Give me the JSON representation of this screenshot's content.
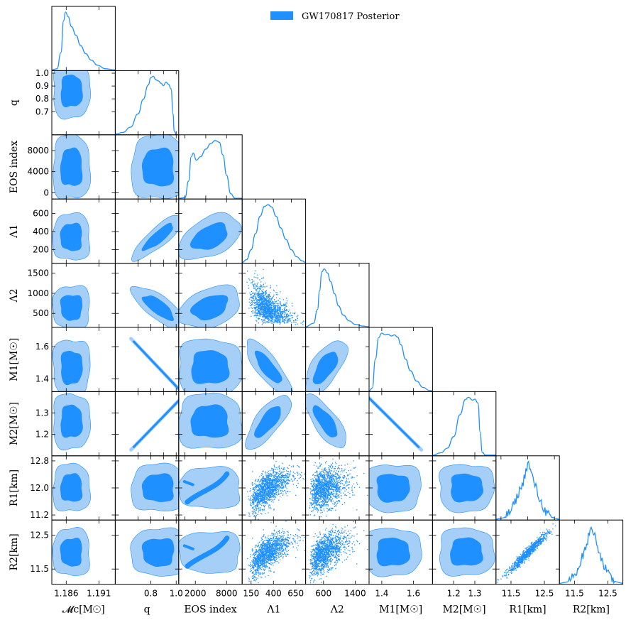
{
  "chart_data": {
    "type": "corner",
    "title": "",
    "colors": {
      "main": "#1e90ff",
      "light": "#a6cff8",
      "frame": "#000000"
    },
    "legend": {
      "label": "GW170817 Posterior",
      "placement": "top-center"
    },
    "parameters": [
      {
        "key": "mc",
        "label": "𝓜c[M☉]",
        "axis_label": "𝓜c[M☉]",
        "range": [
          1.1838,
          1.1935
        ],
        "mean": 1.1868,
        "sd": 0.0012,
        "skew": 1.2,
        "ticks": [
          1.186,
          1.191
        ],
        "tick_labels": [
          "1.186",
          "1.191"
        ]
      },
      {
        "key": "q",
        "label": "q",
        "range": [
          0.52,
          1.02
        ],
        "mean": 0.86,
        "sd": 0.09,
        "skew": -0.6,
        "ticks": [
          0.7,
          0.8,
          0.9,
          1.0
        ],
        "tick_labels": [
          "0.7",
          "0.8",
          "0.9",
          "1.0"
        ],
        "bottom_ticks": [
          0.8,
          1.0
        ],
        "bottom_tick_labels": [
          "0.8",
          "1.0"
        ]
      },
      {
        "key": "eos",
        "label": "EOS index",
        "range": [
          -1200,
          11000
        ],
        "mean": 4800,
        "sd": 2600,
        "skew": 0,
        "ticks": [
          0,
          4000,
          8000
        ],
        "tick_labels": [
          "0",
          "4000",
          "8000"
        ],
        "bottom_ticks": [
          2000,
          8000
        ],
        "bottom_tick_labels": [
          "2000",
          "8000"
        ]
      },
      {
        "key": "l1",
        "label": "Λ1",
        "range": [
          50,
          760
        ],
        "mean": 340,
        "sd": 110,
        "skew": 0.8,
        "ticks": [
          200,
          400,
          600
        ],
        "tick_labels": [
          "200",
          "400",
          "600"
        ],
        "bottom_ticks": [
          150,
          400,
          650
        ],
        "bottom_tick_labels": [
          "150",
          "400",
          "650"
        ]
      },
      {
        "key": "l2",
        "label": "Λ2",
        "range": [
          150,
          1750
        ],
        "mean": 650,
        "sd": 230,
        "skew": 1.0,
        "ticks": [
          500,
          1000,
          1500
        ],
        "tick_labels": [
          "500",
          "1000",
          "1500"
        ],
        "bottom_ticks": [
          600,
          1400
        ],
        "bottom_tick_labels": [
          "600",
          "1400"
        ]
      },
      {
        "key": "m1",
        "label": "M1[M☉]",
        "range": [
          1.32,
          1.72
        ],
        "mean": 1.47,
        "sd": 0.075,
        "skew": 0.6,
        "ticks": [
          1.4,
          1.6
        ],
        "tick_labels": [
          "1.4",
          "1.6"
        ],
        "left_ticks": [
          1.4,
          1.6
        ],
        "left_tick_labels": [
          "1.4",
          "1.6"
        ]
      },
      {
        "key": "m2",
        "label": "M2[M☉]",
        "range": [
          1.1,
          1.4
        ],
        "mean": 1.26,
        "sd": 0.055,
        "skew": -0.6,
        "ticks": [
          1.2,
          1.3
        ],
        "tick_labels": [
          "1.2",
          "1.3"
        ]
      },
      {
        "key": "r1",
        "label": "R1[km]",
        "range": [
          11.05,
          12.95
        ],
        "mean": 12.0,
        "sd": 0.3,
        "skew": 0,
        "ticks": [
          11.2,
          12.0,
          12.8
        ],
        "tick_labels": [
          "11.2",
          "12.0",
          "12.8"
        ],
        "bottom_ticks": [
          11.5,
          12.5
        ],
        "bottom_tick_labels": [
          "11.5",
          "12.5"
        ]
      },
      {
        "key": "r2",
        "label": "R2[km]",
        "range": [
          11.05,
          12.95
        ],
        "mean": 12.0,
        "sd": 0.3,
        "skew": 0,
        "ticks": [
          11.5,
          12.5
        ],
        "tick_labels": [
          "11.5",
          "12.5"
        ]
      }
    ],
    "diagonal": {
      "mc": [
        [
          1.1838,
          0
        ],
        [
          1.1846,
          0.02
        ],
        [
          1.1852,
          0.3
        ],
        [
          1.1856,
          0.85
        ],
        [
          1.1859,
          1.0
        ],
        [
          1.1863,
          0.92
        ],
        [
          1.1868,
          0.75
        ],
        [
          1.1875,
          0.6
        ],
        [
          1.1882,
          0.42
        ],
        [
          1.189,
          0.28
        ],
        [
          1.1898,
          0.17
        ],
        [
          1.1908,
          0.08
        ],
        [
          1.192,
          0.02
        ],
        [
          1.1935,
          0
        ]
      ],
      "q": [
        [
          0.52,
          0
        ],
        [
          0.58,
          0.03
        ],
        [
          0.64,
          0.12
        ],
        [
          0.7,
          0.35
        ],
        [
          0.74,
          0.6
        ],
        [
          0.78,
          0.85
        ],
        [
          0.8,
          0.98
        ],
        [
          0.82,
          1.0
        ],
        [
          0.84,
          0.94
        ],
        [
          0.86,
          0.92
        ],
        [
          0.88,
          0.88
        ],
        [
          0.9,
          0.84
        ],
        [
          0.92,
          0.9
        ],
        [
          0.94,
          0.86
        ],
        [
          0.96,
          0.78
        ],
        [
          0.975,
          0.35
        ],
        [
          0.985,
          0.05
        ],
        [
          1.0,
          0
        ]
      ],
      "eos": [
        [
          -1200,
          0
        ],
        [
          0,
          0.01
        ],
        [
          700,
          0.3
        ],
        [
          1200,
          0.72
        ],
        [
          1600,
          0.78
        ],
        [
          2200,
          0.66
        ],
        [
          3000,
          0.72
        ],
        [
          4000,
          0.85
        ],
        [
          5000,
          0.95
        ],
        [
          5800,
          1.0
        ],
        [
          6600,
          0.97
        ],
        [
          7300,
          0.75
        ],
        [
          8000,
          0.4
        ],
        [
          8800,
          0.08
        ],
        [
          9600,
          0
        ],
        [
          11000,
          0
        ]
      ],
      "l1": [
        [
          50,
          0
        ],
        [
          100,
          0.05
        ],
        [
          150,
          0.22
        ],
        [
          200,
          0.5
        ],
        [
          250,
          0.8
        ],
        [
          300,
          0.97
        ],
        [
          340,
          1.0
        ],
        [
          380,
          0.96
        ],
        [
          430,
          0.8
        ],
        [
          480,
          0.6
        ],
        [
          540,
          0.4
        ],
        [
          600,
          0.22
        ],
        [
          660,
          0.1
        ],
        [
          720,
          0.03
        ],
        [
          760,
          0
        ]
      ],
      "l2": [
        [
          150,
          0
        ],
        [
          350,
          0.06
        ],
        [
          450,
          0.3
        ],
        [
          500,
          0.62
        ],
        [
          560,
          0.95
        ],
        [
          620,
          1.0
        ],
        [
          700,
          0.93
        ],
        [
          780,
          0.78
        ],
        [
          880,
          0.57
        ],
        [
          980,
          0.36
        ],
        [
          1100,
          0.2
        ],
        [
          1250,
          0.1
        ],
        [
          1400,
          0.04
        ],
        [
          1600,
          0.01
        ],
        [
          1750,
          0
        ]
      ],
      "m1": [
        [
          1.32,
          0
        ],
        [
          1.34,
          0.05
        ],
        [
          1.36,
          0.55
        ],
        [
          1.38,
          0.92
        ],
        [
          1.4,
          1.0
        ],
        [
          1.42,
          0.97
        ],
        [
          1.44,
          0.98
        ],
        [
          1.46,
          0.95
        ],
        [
          1.48,
          0.97
        ],
        [
          1.5,
          0.93
        ],
        [
          1.52,
          0.8
        ],
        [
          1.55,
          0.55
        ],
        [
          1.58,
          0.35
        ],
        [
          1.62,
          0.17
        ],
        [
          1.66,
          0.06
        ],
        [
          1.7,
          0.01
        ],
        [
          1.72,
          0
        ]
      ],
      "m2": [
        [
          1.1,
          0
        ],
        [
          1.14,
          0.04
        ],
        [
          1.17,
          0.12
        ],
        [
          1.2,
          0.32
        ],
        [
          1.23,
          0.7
        ],
        [
          1.255,
          0.96
        ],
        [
          1.27,
          1.0
        ],
        [
          1.29,
          0.95
        ],
        [
          1.3,
          0.97
        ],
        [
          1.315,
          0.9
        ],
        [
          1.325,
          0.4
        ],
        [
          1.335,
          0.05
        ],
        [
          1.35,
          0
        ],
        [
          1.4,
          0
        ]
      ],
      "r1": [
        [
          11.05,
          0
        ],
        [
          11.3,
          0.03
        ],
        [
          11.5,
          0.15
        ],
        [
          11.65,
          0.35
        ],
        [
          11.75,
          0.5
        ],
        [
          11.85,
          0.62
        ],
        [
          11.95,
          0.88
        ],
        [
          12.02,
          1.0
        ],
        [
          12.1,
          0.82
        ],
        [
          12.2,
          0.65
        ],
        [
          12.3,
          0.45
        ],
        [
          12.4,
          0.3
        ],
        [
          12.55,
          0.12
        ],
        [
          12.7,
          0.04
        ],
        [
          12.95,
          0
        ]
      ],
      "r2": [
        [
          11.05,
          0
        ],
        [
          11.3,
          0.03
        ],
        [
          11.5,
          0.15
        ],
        [
          11.65,
          0.33
        ],
        [
          11.75,
          0.5
        ],
        [
          11.85,
          0.65
        ],
        [
          11.95,
          0.9
        ],
        [
          12.03,
          1.0
        ],
        [
          12.1,
          0.85
        ],
        [
          12.2,
          0.66
        ],
        [
          12.3,
          0.46
        ],
        [
          12.4,
          0.3
        ],
        [
          12.55,
          0.12
        ],
        [
          12.7,
          0.04
        ],
        [
          12.95,
          0
        ]
      ]
    },
    "pairs": {
      "q|mc": {
        "kind": "contour",
        "rho": -0.05
      },
      "eos|mc": {
        "kind": "contour",
        "rho": 0.0
      },
      "eos|q": {
        "kind": "contour",
        "rho": 0.0
      },
      "l1|mc": {
        "kind": "contour",
        "rho": -0.05
      },
      "l1|q": {
        "kind": "contour",
        "rho": 0.85
      },
      "l1|eos": {
        "kind": "contour",
        "rho": 0.45
      },
      "l2|mc": {
        "kind": "contour",
        "rho": -0.1
      },
      "l2|q": {
        "kind": "contour",
        "rho": -0.75
      },
      "l2|eos": {
        "kind": "contour",
        "rho": 0.35
      },
      "l2|l1": {
        "kind": "scatter",
        "rho": -0.55
      },
      "m1|mc": {
        "kind": "contour",
        "rho": 0.05
      },
      "m1|q": {
        "kind": "line",
        "rho": -0.99
      },
      "m1|eos": {
        "kind": "contour",
        "rho": 0.0
      },
      "m1|l1": {
        "kind": "contour",
        "rho": -0.8
      },
      "m1|l2": {
        "kind": "contour",
        "rho": 0.65
      },
      "m2|mc": {
        "kind": "contour",
        "rho": 0.0
      },
      "m2|q": {
        "kind": "line",
        "rho": 0.99
      },
      "m2|eos": {
        "kind": "contour",
        "rho": 0.0
      },
      "m2|l1": {
        "kind": "contour",
        "rho": 0.75
      },
      "m2|l2": {
        "kind": "contour",
        "rho": -0.75
      },
      "m2|m1": {
        "kind": "line",
        "rho": -0.99
      },
      "r1|mc": {
        "kind": "contour",
        "rho": 0.0
      },
      "r1|q": {
        "kind": "contour",
        "rho": 0.0
      },
      "r1|eos": {
        "kind": "eos",
        "rho": 0.6
      },
      "r1|l1": {
        "kind": "scatter",
        "rho": 0.6
      },
      "r1|l2": {
        "kind": "scatter",
        "rho": 0.3
      },
      "r1|m1": {
        "kind": "contour",
        "rho": 0.0
      },
      "r1|m2": {
        "kind": "contour",
        "rho": 0.0
      },
      "r2|mc": {
        "kind": "contour",
        "rho": 0.0
      },
      "r2|q": {
        "kind": "contour",
        "rho": 0.0
      },
      "r2|eos": {
        "kind": "eos",
        "rho": 0.7
      },
      "r2|l1": {
        "kind": "scatter",
        "rho": 0.65
      },
      "r2|l2": {
        "kind": "scatter",
        "rho": 0.55
      },
      "r2|m1": {
        "kind": "contour",
        "rho": 0.0
      },
      "r2|m2": {
        "kind": "contour",
        "rho": 0.0
      },
      "r2|r1": {
        "kind": "scatter-tight",
        "rho": 0.97
      }
    }
  }
}
